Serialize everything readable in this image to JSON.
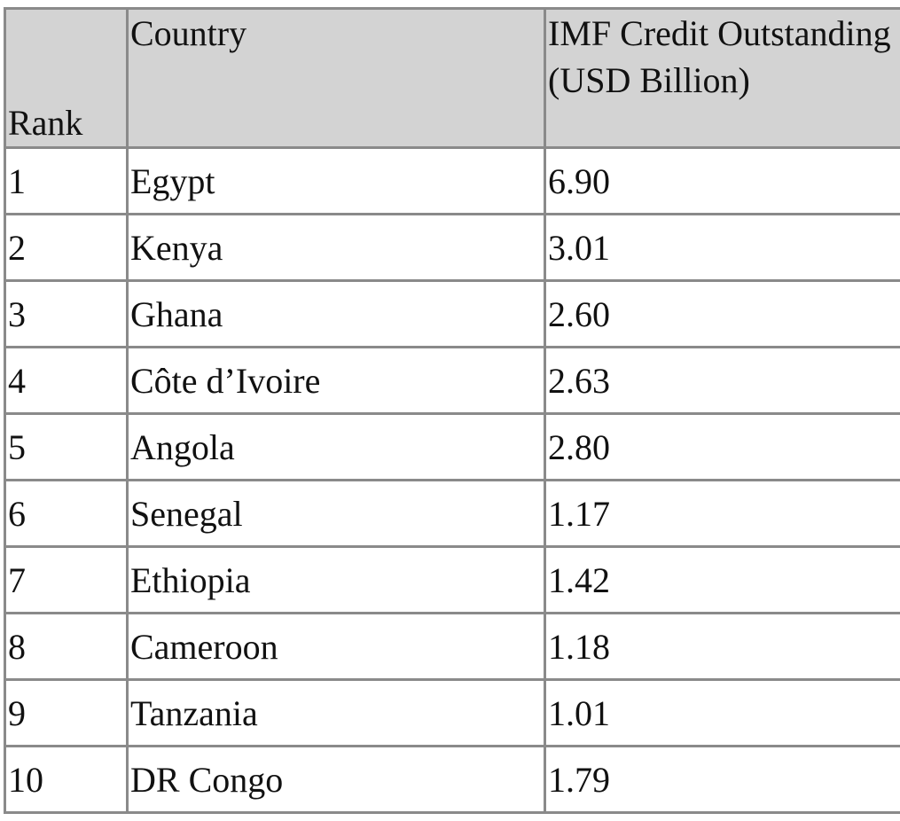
{
  "table": {
    "header": [
      "Rank",
      "Country",
      "IMF Credit Outstanding (USD Billion)"
    ],
    "rows": [
      [
        "1",
        "Egypt",
        "6.90"
      ],
      [
        "2",
        "Kenya",
        "3.01"
      ],
      [
        "3",
        "Ghana",
        "2.60"
      ],
      [
        "4",
        "Côte d’Ivoire",
        "2.63"
      ],
      [
        "5",
        "Angola",
        "2.80"
      ],
      [
        "6",
        "Senegal",
        "1.17"
      ],
      [
        "7",
        "Ethiopia",
        "1.42"
      ],
      [
        "8",
        "Cameroon",
        "1.18"
      ],
      [
        "9",
        "Tanzania",
        "1.01"
      ],
      [
        "10",
        "DR Congo",
        "1.79"
      ]
    ]
  }
}
